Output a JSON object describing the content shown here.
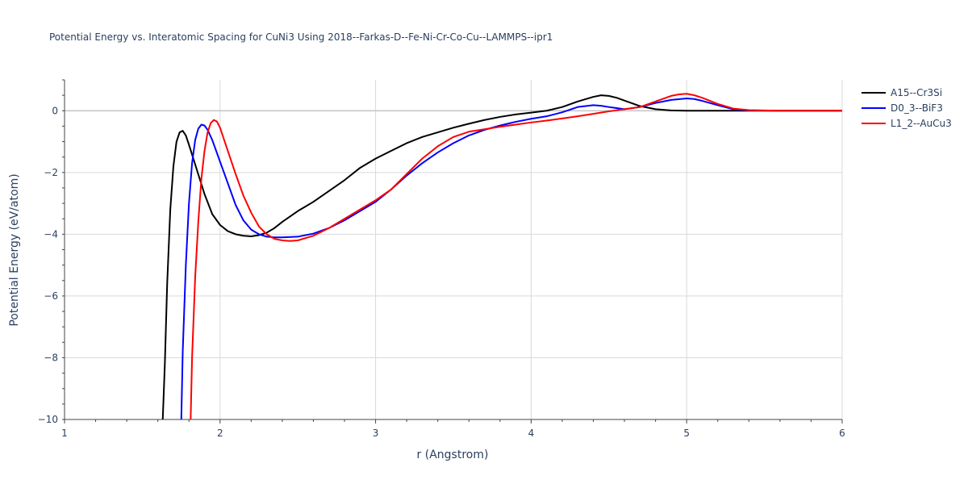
{
  "chart_data": {
    "type": "line",
    "title": "Potential Energy vs. Interatomic Spacing for CuNi3 Using 2018--Farkas-D--Fe-Ni-Cr-Co-Cu--LAMMPS--ipr1",
    "xlabel": "r (Angstrom)",
    "ylabel": "Potential Energy (eV/atom)",
    "xlim": [
      1,
      6
    ],
    "ylim": [
      -10,
      1
    ],
    "x_ticks": [
      1,
      2,
      3,
      4,
      5,
      6
    ],
    "y_ticks": [
      -10,
      -8,
      -6,
      -4,
      -2,
      0
    ],
    "grid": true,
    "legend_position": "top-right",
    "series": [
      {
        "name": "A15--Cr3Si",
        "color": "#000000",
        "x": [
          1.63,
          1.645,
          1.66,
          1.68,
          1.7,
          1.72,
          1.74,
          1.76,
          1.78,
          1.8,
          1.85,
          1.9,
          1.95,
          2.0,
          2.05,
          2.1,
          2.15,
          2.2,
          2.25,
          2.3,
          2.35,
          2.4,
          2.5,
          2.6,
          2.7,
          2.8,
          2.9,
          3.0,
          3.1,
          3.2,
          3.3,
          3.4,
          3.5,
          3.6,
          3.7,
          3.8,
          3.9,
          4.0,
          4.1,
          4.2,
          4.3,
          4.4,
          4.45,
          4.5,
          4.55,
          4.6,
          4.7,
          4.8,
          4.9,
          5.0,
          5.2,
          5.4,
          5.6,
          5.8,
          6.0
        ],
        "y": [
          -10.2,
          -8.2,
          -5.6,
          -3.2,
          -1.8,
          -1.0,
          -0.7,
          -0.65,
          -0.8,
          -1.1,
          -1.9,
          -2.7,
          -3.35,
          -3.7,
          -3.9,
          -4.0,
          -4.05,
          -4.07,
          -4.03,
          -3.95,
          -3.8,
          -3.6,
          -3.25,
          -2.95,
          -2.6,
          -2.25,
          -1.85,
          -1.55,
          -1.3,
          -1.05,
          -0.85,
          -0.7,
          -0.55,
          -0.42,
          -0.3,
          -0.2,
          -0.12,
          -0.06,
          0.0,
          0.12,
          0.3,
          0.45,
          0.5,
          0.48,
          0.42,
          0.33,
          0.15,
          0.05,
          0.01,
          0.0,
          0.0,
          0.0,
          0.0,
          0.0,
          0.0
        ]
      },
      {
        "name": "D0_3--BiF3",
        "color": "#0000ff",
        "x": [
          1.75,
          1.76,
          1.78,
          1.8,
          1.82,
          1.84,
          1.86,
          1.88,
          1.9,
          1.92,
          1.95,
          2.0,
          2.05,
          2.1,
          2.15,
          2.2,
          2.25,
          2.3,
          2.35,
          2.4,
          2.5,
          2.6,
          2.7,
          2.8,
          2.9,
          3.0,
          3.1,
          3.2,
          3.3,
          3.4,
          3.5,
          3.6,
          3.7,
          3.8,
          3.9,
          4.0,
          4.1,
          4.2,
          4.3,
          4.4,
          4.45,
          4.5,
          4.6,
          4.7,
          4.8,
          4.9,
          5.0,
          5.05,
          5.1,
          5.2,
          5.3,
          5.4,
          5.6,
          5.8,
          6.0
        ],
        "y": [
          -10.2,
          -7.8,
          -5.0,
          -3.0,
          -1.7,
          -0.95,
          -0.58,
          -0.45,
          -0.48,
          -0.62,
          -0.95,
          -1.65,
          -2.35,
          -3.05,
          -3.55,
          -3.85,
          -4.0,
          -4.08,
          -4.1,
          -4.1,
          -4.08,
          -3.98,
          -3.8,
          -3.55,
          -3.25,
          -2.95,
          -2.55,
          -2.1,
          -1.7,
          -1.35,
          -1.05,
          -0.8,
          -0.62,
          -0.48,
          -0.36,
          -0.26,
          -0.18,
          -0.05,
          0.12,
          0.18,
          0.16,
          0.12,
          0.05,
          0.12,
          0.25,
          0.35,
          0.4,
          0.38,
          0.32,
          0.18,
          0.05,
          0.01,
          0.0,
          0.0,
          0.0
        ]
      },
      {
        "name": "L1_2--AuCu3",
        "color": "#ff0000",
        "x": [
          1.81,
          1.82,
          1.84,
          1.86,
          1.88,
          1.9,
          1.92,
          1.94,
          1.96,
          1.98,
          2.0,
          2.05,
          2.1,
          2.15,
          2.2,
          2.25,
          2.3,
          2.35,
          2.4,
          2.45,
          2.5,
          2.6,
          2.7,
          2.8,
          2.9,
          3.0,
          3.1,
          3.2,
          3.3,
          3.4,
          3.5,
          3.6,
          3.7,
          3.8,
          3.9,
          4.0,
          4.1,
          4.2,
          4.3,
          4.4,
          4.5,
          4.6,
          4.7,
          4.8,
          4.9,
          4.95,
          5.0,
          5.05,
          5.1,
          5.2,
          5.3,
          5.4,
          5.6,
          5.8,
          6.0
        ],
        "y": [
          -10.2,
          -8.0,
          -5.4,
          -3.6,
          -2.2,
          -1.3,
          -0.7,
          -0.4,
          -0.3,
          -0.35,
          -0.55,
          -1.3,
          -2.05,
          -2.75,
          -3.3,
          -3.75,
          -4.0,
          -4.15,
          -4.2,
          -4.22,
          -4.2,
          -4.05,
          -3.8,
          -3.5,
          -3.2,
          -2.9,
          -2.55,
          -2.05,
          -1.55,
          -1.15,
          -0.85,
          -0.68,
          -0.6,
          -0.52,
          -0.45,
          -0.38,
          -0.32,
          -0.25,
          -0.18,
          -0.1,
          -0.02,
          0.05,
          0.12,
          0.3,
          0.48,
          0.53,
          0.55,
          0.5,
          0.42,
          0.22,
          0.07,
          0.02,
          0.0,
          0.0,
          0.0
        ]
      }
    ]
  }
}
